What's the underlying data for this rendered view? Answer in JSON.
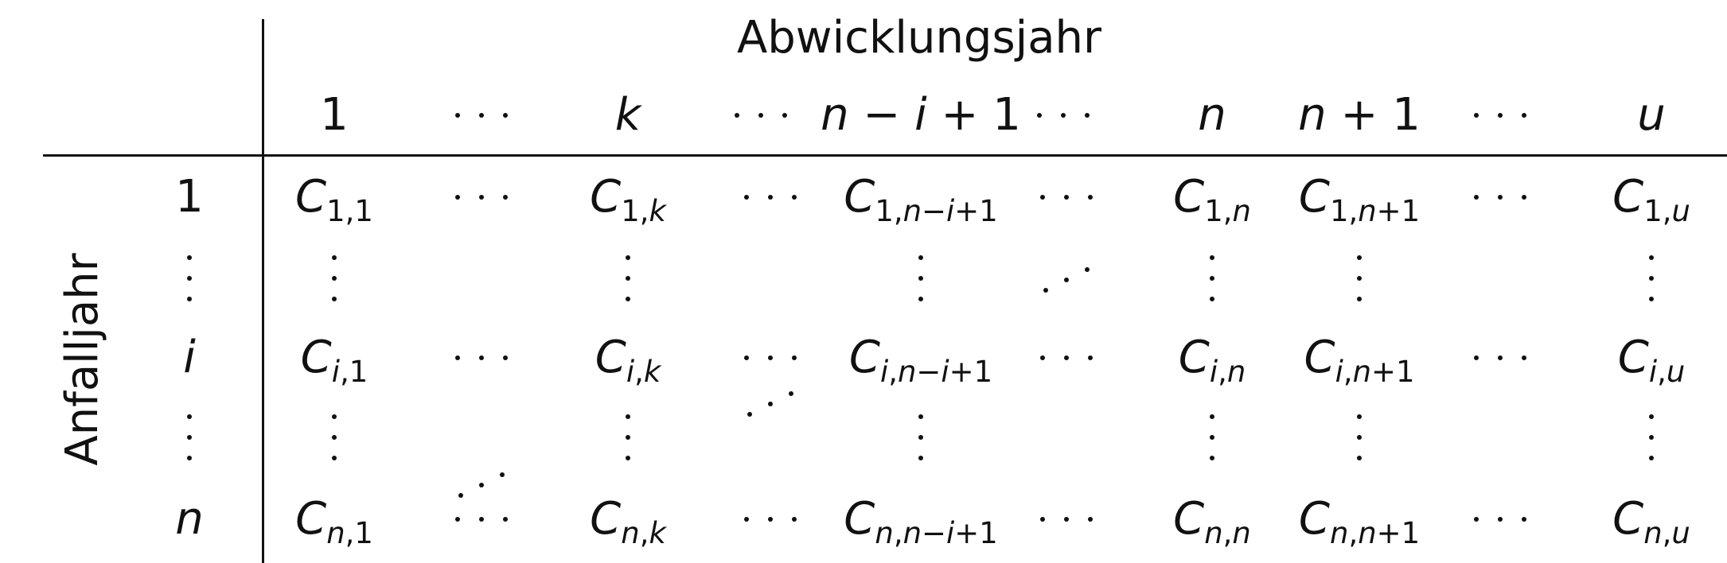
{
  "table": {
    "column_group_label": "Abwicklungsjahr",
    "row_group_label": "Anfalljahr",
    "column_headers": [
      "1",
      "…",
      "k",
      "…",
      "n − i + 1",
      "…",
      "n",
      "n + 1",
      "…",
      "u"
    ],
    "row_headers": [
      "1",
      "⋮",
      "i",
      "⋮",
      "n"
    ],
    "rows": [
      {
        "label": "1",
        "cells": [
          "C_{1,1}",
          "…",
          "C_{1,k}",
          "…",
          "C_{1,n−i+1}",
          "…",
          "C_{1,n}",
          "C_{1,n+1}",
          "…",
          "C_{1,u}"
        ]
      },
      {
        "label": "⋮",
        "cells": [
          "⋮",
          "",
          "⋮",
          "",
          "⋮",
          "⋰",
          "⋮",
          "⋮",
          "",
          "⋮"
        ]
      },
      {
        "label": "i",
        "cells": [
          "C_{i,1}",
          "…",
          "C_{i,k}",
          "…",
          "C_{i,n−i+1}",
          "…",
          "C_{i,n}",
          "C_{i,n+1}",
          "…",
          "C_{i,u}"
        ]
      },
      {
        "label": "⋮",
        "cells": [
          "⋮",
          "",
          "⋮",
          "⋰",
          "⋮",
          "",
          "⋮",
          "⋮",
          "",
          "⋮"
        ]
      },
      {
        "label": "n",
        "cells": [
          "C_{n,1}",
          "…",
          "C_{n,k}",
          "…",
          "C_{n,n−i+1}",
          "…",
          "C_{n,n}",
          "C_{n,n+1}",
          "…",
          "C_{n,u}"
        ]
      }
    ],
    "between_rows_diagonal_dots": [
      {
        "after_row": 3,
        "column": 1,
        "glyph": "⋰"
      }
    ]
  }
}
